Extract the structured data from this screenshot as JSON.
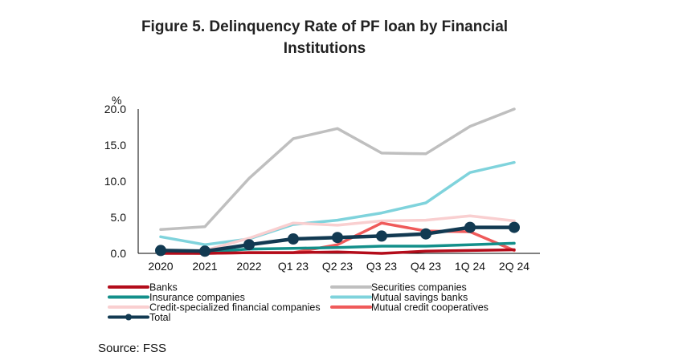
{
  "chart_data": {
    "type": "line",
    "title": "Figure 5. Delinquency Rate of PF loan by Financial Institutions",
    "title_lines": [
      "Figure 5. Delinquency Rate of PF loan by Financial",
      "Institutions"
    ],
    "ylabel": "%",
    "xlabel": "",
    "ylim": [
      0,
      20
    ],
    "yticks": [
      0,
      5,
      10,
      15,
      20
    ],
    "ytick_labels": [
      "0.0",
      "5.0",
      "10.0",
      "15.0",
      "20.0"
    ],
    "categories": [
      "2020",
      "2021",
      "2022",
      "Q1 23",
      "Q2 23",
      "Q3 23",
      "Q4 23",
      "1Q 24",
      "2Q 24"
    ],
    "grid": false,
    "legend_position": "bottom",
    "series": [
      {
        "name": "Securities companies",
        "color": "#bfbfbf",
        "marker": false,
        "values": [
          3.3,
          3.7,
          10.4,
          15.9,
          17.3,
          13.9,
          13.8,
          17.6,
          20.0
        ]
      },
      {
        "name": "Mutual savings banks",
        "color": "#7fd3dc",
        "marker": false,
        "values": [
          2.3,
          1.2,
          2.0,
          4.0,
          4.6,
          5.6,
          7.0,
          11.2,
          12.6
        ]
      },
      {
        "name": "Credit-specialized financial companies",
        "color": "#f9cfd0",
        "marker": false,
        "values": [
          0.2,
          0.4,
          2.1,
          4.2,
          3.9,
          4.5,
          4.6,
          5.2,
          4.5
        ]
      },
      {
        "name": "Mutual credit cooperatives",
        "color": "#ef5a5a",
        "marker": false,
        "values": [
          0.1,
          0.0,
          0.1,
          0.1,
          1.2,
          4.2,
          3.1,
          3.0,
          0.4
        ]
      },
      {
        "name": "Insurance companies",
        "color": "#138f8a",
        "marker": false,
        "values": [
          0.3,
          0.2,
          0.6,
          0.7,
          0.8,
          1.0,
          1.0,
          1.2,
          1.4
        ]
      },
      {
        "name": "Banks",
        "color": "#b30c1a",
        "marker": false,
        "values": [
          0.0,
          0.0,
          0.1,
          0.1,
          0.2,
          0.0,
          0.3,
          0.4,
          0.5
        ]
      },
      {
        "name": "Total",
        "color": "#123a52",
        "marker": true,
        "values": [
          0.4,
          0.3,
          1.2,
          2.0,
          2.2,
          2.4,
          2.7,
          3.6,
          3.6
        ]
      }
    ],
    "legend": [
      {
        "name": "Banks",
        "color": "#b30c1a",
        "marker": false
      },
      {
        "name": "Securities companies",
        "color": "#bfbfbf",
        "marker": false
      },
      {
        "name": "Insurance companies",
        "color": "#138f8a",
        "marker": false
      },
      {
        "name": "Mutual savings banks",
        "color": "#7fd3dc",
        "marker": false
      },
      {
        "name": "Credit-specialized financial companies",
        "color": "#f9cfd0",
        "marker": false
      },
      {
        "name": "Mutual credit cooperatives",
        "color": "#ef5a5a",
        "marker": false
      },
      {
        "name": "Total",
        "color": "#123a52",
        "marker": true
      }
    ]
  },
  "source": "Source: FSS"
}
